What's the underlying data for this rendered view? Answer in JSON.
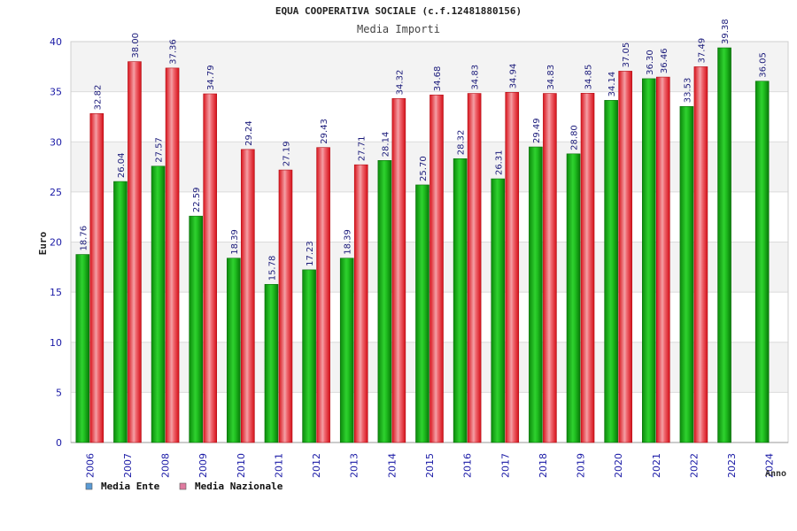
{
  "chart_data": {
    "type": "bar",
    "title": "EQUA COOPERATIVA SOCIALE (c.f.12481880156)",
    "subtitle": "Media Importi",
    "xlabel": "Anno",
    "ylabel": "Euro",
    "ylim": [
      0,
      40
    ],
    "yticks": [
      0,
      5,
      10,
      15,
      20,
      25,
      30,
      35,
      40
    ],
    "grid": true,
    "legend_position": "bottom-left",
    "categories": [
      "2006",
      "2007",
      "2008",
      "2009",
      "2010",
      "2011",
      "2012",
      "2013",
      "2014",
      "2015",
      "2016",
      "2017",
      "2018",
      "2019",
      "2020",
      "2021",
      "2022",
      "2023",
      "2024"
    ],
    "series": [
      {
        "name": "Media Ente",
        "color": "#1faa1f",
        "legend_color": "#5b9bd5",
        "values": [
          18.76,
          26.04,
          27.57,
          22.59,
          18.39,
          15.78,
          17.23,
          18.39,
          28.14,
          25.7,
          28.32,
          26.31,
          29.49,
          28.8,
          34.14,
          36.3,
          33.53,
          39.38,
          36.05
        ],
        "labels": [
          "18.76",
          "26.04",
          "27.57",
          "22.59",
          "18.39",
          "15.78",
          "17.23",
          "18.39",
          "28.14",
          "25.70",
          "28.32",
          "26.31",
          "29.49",
          "28.80",
          "34.14",
          "36.30",
          "33.53",
          "39.38",
          "36.05"
        ]
      },
      {
        "name": "Media Nazionale",
        "color": "#e8333a",
        "legend_color": "#e07ba0",
        "values": [
          32.82,
          38.0,
          37.36,
          34.79,
          29.24,
          27.19,
          29.43,
          27.71,
          34.32,
          34.68,
          34.83,
          34.94,
          34.83,
          34.85,
          37.05,
          36.46,
          37.49,
          null,
          null
        ],
        "labels": [
          "32.82",
          "38.00",
          "37.36",
          "34.79",
          "29.24",
          "27.19",
          "29.43",
          "27.71",
          "34.32",
          "34.68",
          "34.83",
          "34.94",
          "34.83",
          "34.85",
          "37.05",
          "36.46",
          "37.49",
          null,
          null
        ]
      }
    ]
  }
}
